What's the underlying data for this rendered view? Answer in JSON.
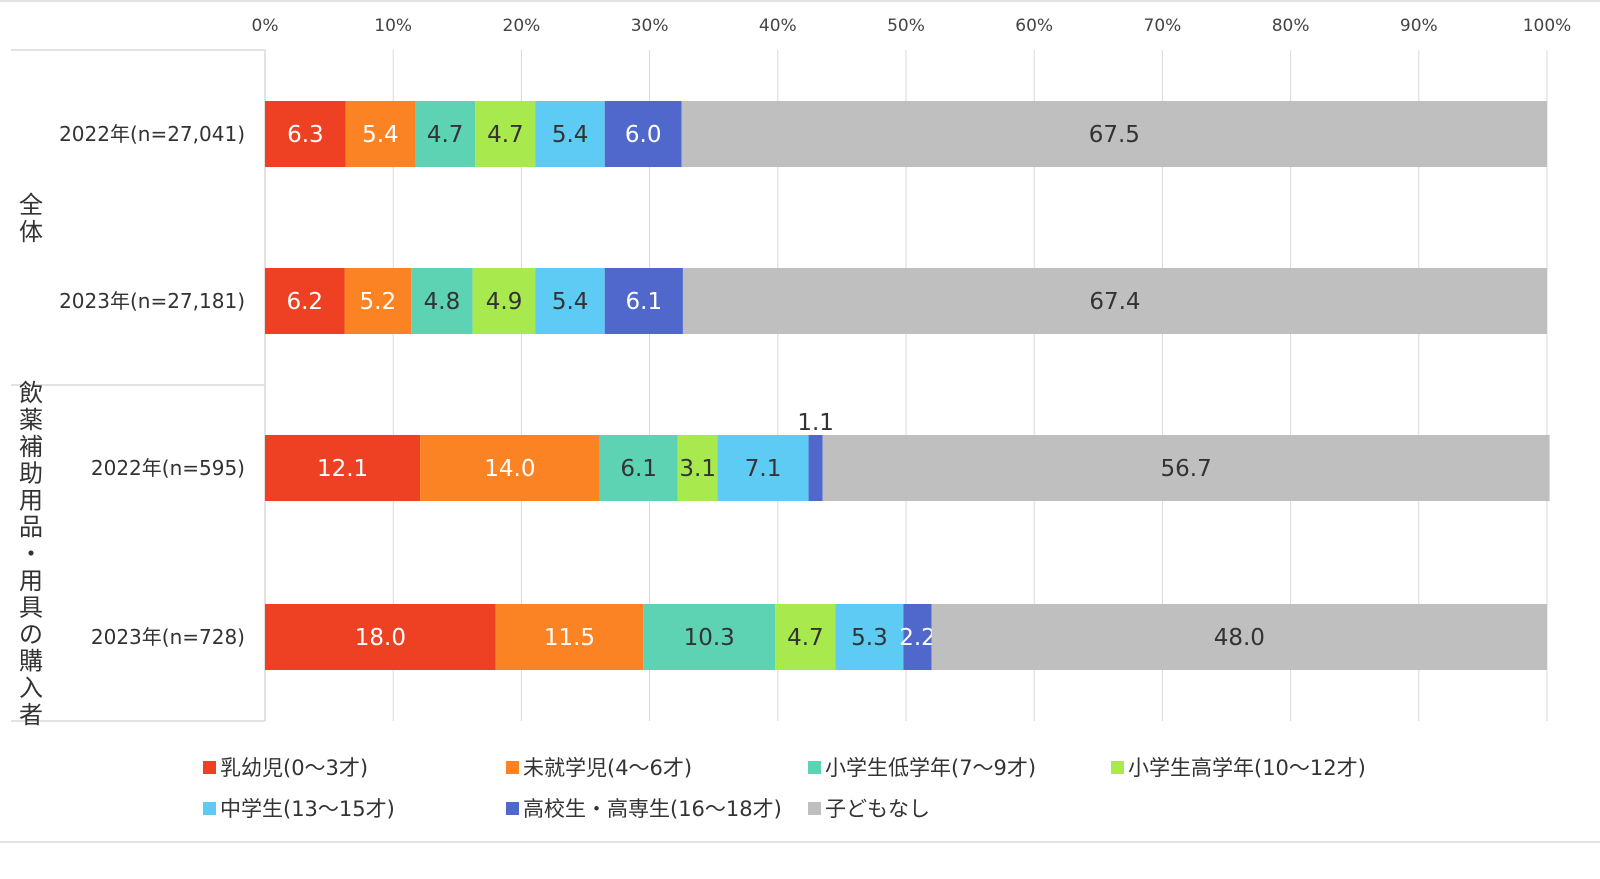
{
  "chart_data": {
    "type": "bar",
    "orientation": "horizontal",
    "stacked": true,
    "xlim": [
      0,
      100
    ],
    "x_ticks": [
      "0%",
      "10%",
      "20%",
      "30%",
      "40%",
      "50%",
      "60%",
      "70%",
      "80%",
      "90%",
      "100%"
    ],
    "grid": true,
    "legend_position": "bottom",
    "groups": [
      {
        "label": "全体",
        "rows": [
          0,
          1
        ]
      },
      {
        "label": "飲薬補助用品・用具の購入者",
        "rows": [
          2,
          3
        ]
      }
    ],
    "categories": [
      "2022年(n=27,041)",
      "2023年(n=27,181)",
      "2022年(n=595)",
      "2023年(n=728)"
    ],
    "series": [
      {
        "name": "乳幼児(0～3才)",
        "color": "#ee4023",
        "label_color": "#ffffff",
        "values": [
          6.3,
          6.2,
          12.1,
          18.0
        ],
        "labels": [
          "6.3",
          "6.2",
          "12.1",
          "18.0"
        ]
      },
      {
        "name": "未就学児(4～6才)",
        "color": "#fb8323",
        "label_color": "#ffffff",
        "values": [
          5.4,
          5.2,
          14.0,
          11.5
        ],
        "labels": [
          "5.4",
          "5.2",
          "14.0",
          "11.5"
        ]
      },
      {
        "name": "小学生低学年(7～9才)",
        "color": "#5ed3b4",
        "label_color": "#333333",
        "values": [
          4.7,
          4.8,
          6.1,
          10.3
        ],
        "labels": [
          "4.7",
          "4.8",
          "6.1",
          "10.3"
        ]
      },
      {
        "name": "小学生高学年(10～12才)",
        "color": "#a8e94e",
        "label_color": "#333333",
        "values": [
          4.7,
          4.9,
          3.1,
          4.7
        ],
        "labels": [
          "4.7",
          "4.9",
          "3.1",
          "4.7"
        ]
      },
      {
        "name": "中学生(13～15才)",
        "color": "#5ecbf4",
        "label_color": "#333333",
        "values": [
          5.4,
          5.4,
          7.1,
          5.3
        ],
        "labels": [
          "5.4",
          "5.4",
          "7.1",
          "5.3"
        ]
      },
      {
        "name": "高校生・高専生(16～18才)",
        "color": "#5068cc",
        "label_color": "#ffffff",
        "values": [
          6.0,
          6.1,
          1.1,
          2.2
        ],
        "labels": [
          "6.0",
          "6.1",
          "1.1",
          "2.2"
        ]
      },
      {
        "name": "子どもなし",
        "color": "#bfbfbf",
        "label_color": "#333333",
        "values": [
          67.5,
          67.4,
          56.7,
          48.0
        ],
        "labels": [
          "67.5",
          "67.4",
          "56.7",
          "48.0"
        ]
      }
    ]
  }
}
